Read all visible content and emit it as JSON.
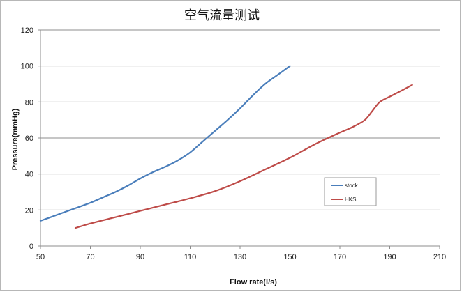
{
  "chart_data": {
    "type": "line",
    "title": "空气流量测试",
    "xlabel": "Flow rate(l/s)",
    "ylabel": "Pressure(mmHg)",
    "xlim": [
      50,
      210
    ],
    "ylim": [
      0,
      120
    ],
    "xticks": [
      50,
      70,
      90,
      110,
      130,
      150,
      170,
      190,
      210
    ],
    "yticks": [
      0,
      20,
      40,
      60,
      80,
      100,
      120
    ],
    "grid": "horizontal",
    "legend_position": "right",
    "series": [
      {
        "name": "stock",
        "color": "#4a7ebb",
        "points": [
          [
            50,
            14
          ],
          [
            55,
            16.5
          ],
          [
            60,
            19
          ],
          [
            65,
            21.5
          ],
          [
            70,
            24
          ],
          [
            75,
            27
          ],
          [
            80,
            30
          ],
          [
            85,
            33.5
          ],
          [
            90,
            37.5
          ],
          [
            95,
            41
          ],
          [
            100,
            44
          ],
          [
            105,
            47.5
          ],
          [
            110,
            52
          ],
          [
            115,
            58
          ],
          [
            120,
            64
          ],
          [
            125,
            70
          ],
          [
            130,
            76.5
          ],
          [
            135,
            83.5
          ],
          [
            140,
            90
          ],
          [
            145,
            95
          ],
          [
            150,
            100
          ]
        ]
      },
      {
        "name": "HKS",
        "color": "#be4b48",
        "points": [
          [
            64,
            10
          ],
          [
            70,
            12.5
          ],
          [
            80,
            16
          ],
          [
            90,
            19.5
          ],
          [
            100,
            23
          ],
          [
            110,
            26.5
          ],
          [
            120,
            30.5
          ],
          [
            130,
            36
          ],
          [
            140,
            42.5
          ],
          [
            150,
            49
          ],
          [
            160,
            56.5
          ],
          [
            170,
            63
          ],
          [
            175,
            66
          ],
          [
            180,
            70
          ],
          [
            183,
            75
          ],
          [
            186,
            80
          ],
          [
            190,
            83
          ],
          [
            195,
            86.5
          ],
          [
            199,
            89.5
          ]
        ]
      }
    ]
  }
}
